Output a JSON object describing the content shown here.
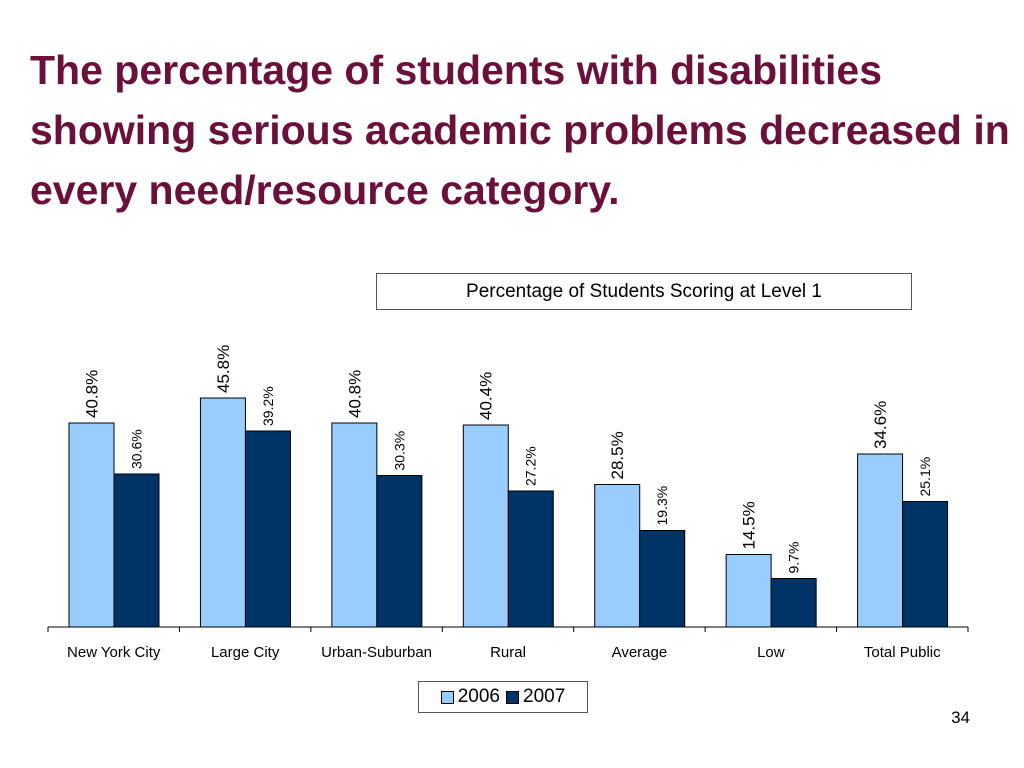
{
  "slide": {
    "title": "The percentage of students with disabilities showing serious academic problems decreased in every need/resource category.",
    "page_number": "34"
  },
  "chart_data": {
    "type": "bar",
    "title": "Percentage of Students Scoring at Level 1",
    "categories": [
      "New York City",
      "Large City",
      "Urban-Suburban",
      "Rural",
      "Average",
      "Low",
      "Total Public"
    ],
    "series": [
      {
        "name": "2006",
        "color": "#99ccff",
        "values": [
          40.8,
          45.8,
          40.8,
          40.4,
          28.5,
          14.5,
          34.6
        ],
        "labels": [
          "40.8%",
          "45.8%",
          "40.8%",
          "40.4%",
          "28.5%",
          "14.5%",
          "34.6%"
        ]
      },
      {
        "name": "2007",
        "color": "#003366",
        "values": [
          30.6,
          39.2,
          30.3,
          27.2,
          19.3,
          9.7,
          25.1
        ],
        "labels": [
          "30.6%",
          "39.2%",
          "30.3%",
          "27.2%",
          "19.3%",
          "9.7%",
          "25.1%"
        ]
      }
    ],
    "ylim": [
      0,
      50
    ],
    "grid": false,
    "legend": "bottom"
  }
}
